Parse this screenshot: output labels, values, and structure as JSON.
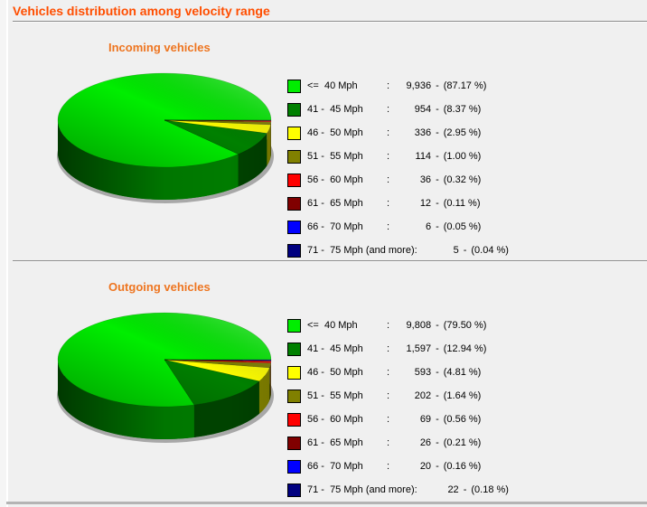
{
  "page": {
    "title": "Vehicles distribution among velocity range",
    "colors": {
      "title": "#FF4E00",
      "chart_title": "#EE7520",
      "background": "#F0F0F0",
      "divider": "#8C8C8C"
    }
  },
  "legend_format": {
    "colon": ":",
    "dash": "-",
    "pct_open": "(",
    "pct_close": " %)"
  },
  "chart_data": [
    {
      "type": "pie",
      "title": "Incoming vehicles",
      "legend_position": "right",
      "slices": [
        {
          "range": "<=  40 Mph",
          "count": "9,936",
          "percent": "87.17",
          "color": "#00EE00"
        },
        {
          "range": "41 -  45 Mph",
          "count": "954",
          "percent": "8.37",
          "color": "#008000"
        },
        {
          "range": "46 -  50 Mph",
          "count": "336",
          "percent": "2.95",
          "color": "#FFFF00"
        },
        {
          "range": "51 -  55 Mph",
          "count": "114",
          "percent": "1.00",
          "color": "#808000"
        },
        {
          "range": "56 -  60 Mph",
          "count": "36",
          "percent": "0.32",
          "color": "#FF0000"
        },
        {
          "range": "61 -  65 Mph",
          "count": "12",
          "percent": "0.11",
          "color": "#800000"
        },
        {
          "range": "66 -  70 Mph",
          "count": "6",
          "percent": "0.05",
          "color": "#0000FF"
        },
        {
          "range": "71 -  75 Mph (and more)",
          "count": "5",
          "percent": "0.04",
          "color": "#000080"
        }
      ]
    },
    {
      "type": "pie",
      "title": "Outgoing vehicles",
      "legend_position": "right",
      "slices": [
        {
          "range": "<=  40 Mph",
          "count": "9,808",
          "percent": "79.50",
          "color": "#00EE00"
        },
        {
          "range": "41 -  45 Mph",
          "count": "1,597",
          "percent": "12.94",
          "color": "#008000"
        },
        {
          "range": "46 -  50 Mph",
          "count": "593",
          "percent": "4.81",
          "color": "#FFFF00"
        },
        {
          "range": "51 -  55 Mph",
          "count": "202",
          "percent": "1.64",
          "color": "#808000"
        },
        {
          "range": "56 -  60 Mph",
          "count": "69",
          "percent": "0.56",
          "color": "#FF0000"
        },
        {
          "range": "61 -  65 Mph",
          "count": "26",
          "percent": "0.21",
          "color": "#800000"
        },
        {
          "range": "66 -  70 Mph",
          "count": "20",
          "percent": "0.16",
          "color": "#0000FF"
        },
        {
          "range": "71 -  75 Mph (and more)",
          "count": "22",
          "percent": "0.18",
          "color": "#000080"
        }
      ]
    }
  ]
}
